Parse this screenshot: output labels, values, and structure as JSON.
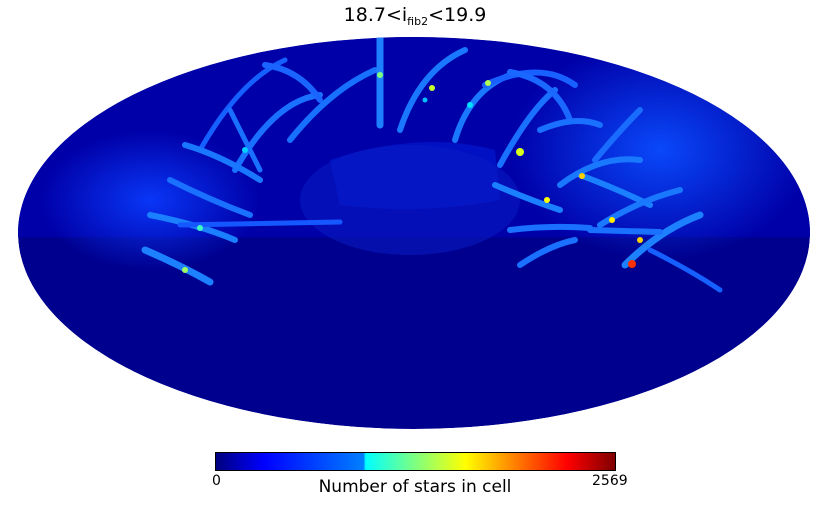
{
  "title": {
    "prefix": "18.7<i",
    "subscript": "fib2",
    "suffix": "<19.9"
  },
  "colorbar": {
    "min_label": "0",
    "max_label": "2569",
    "label": "Number of stars in cell",
    "colormap": "jet"
  },
  "map": {
    "projection": "mollweide",
    "background_color": "#00008f",
    "grid": false
  }
}
